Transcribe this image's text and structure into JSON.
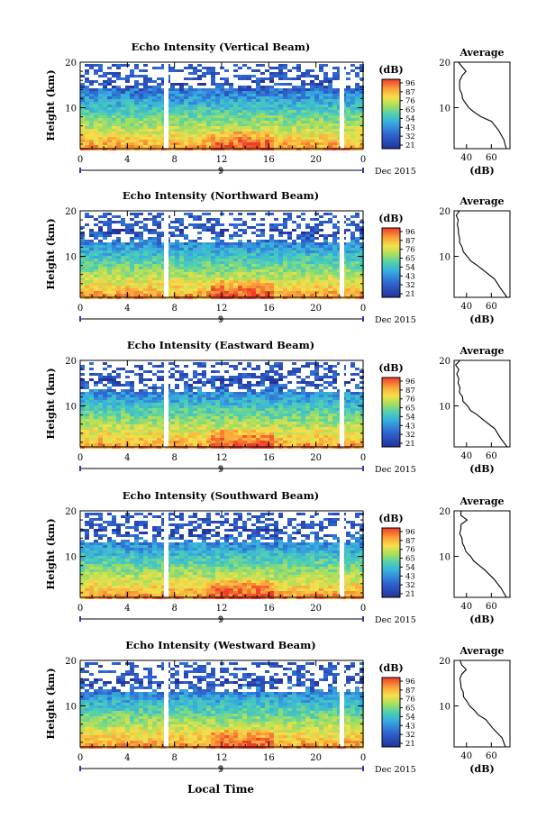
{
  "figure": {
    "xlabel": "Local Time",
    "date_label": "Dec 2015"
  },
  "colorbar": {
    "label": "(dB)",
    "tick_labels": [
      "96",
      "87",
      "76",
      "65",
      "54",
      "43",
      "32",
      "21"
    ],
    "colors": [
      "#f0342a",
      "#fa7a24",
      "#fcd23a",
      "#b8e05a",
      "#36c9a8",
      "#39b7e0",
      "#2f7bd3",
      "#2a3cb4"
    ]
  },
  "profile": {
    "title": "Average",
    "xlabel": "(dB)",
    "xticks": [
      "40",
      "60"
    ]
  },
  "chart_data": [
    {
      "type": "heatmap",
      "title": "Echo Intensity (Vertical Beam)",
      "ylabel": "Height (km)",
      "x": [
        0,
        4,
        8,
        12,
        16,
        20,
        24
      ],
      "x_tick_labels": [
        "0",
        "4",
        "8",
        "12",
        "16",
        "20",
        "0"
      ],
      "x_date_tick": "9",
      "yticks": [
        10,
        20
      ],
      "ylim": [
        1,
        20
      ],
      "xlim": [
        0,
        24
      ],
      "gaps_hours": [
        7.3,
        22.2
      ],
      "profile": {
        "type": "line",
        "ylim": [
          1,
          20
        ],
        "xlim": [
          30,
          75
        ],
        "height_km": [
          1,
          3,
          5,
          7,
          8,
          9,
          10,
          11,
          12,
          13,
          14,
          15,
          16,
          17,
          18,
          19,
          20
        ],
        "db": [
          72,
          70,
          66,
          60,
          52,
          46,
          42,
          39,
          37,
          36,
          35,
          34,
          35,
          36,
          40,
          36,
          34
        ]
      }
    },
    {
      "type": "heatmap",
      "title": "Echo Intensity (Northward Beam)",
      "ylabel": "Height (km)",
      "x": [
        0,
        4,
        8,
        12,
        16,
        20,
        24
      ],
      "x_tick_labels": [
        "0",
        "4",
        "8",
        "12",
        "16",
        "20",
        "0"
      ],
      "x_date_tick": "9",
      "yticks": [
        10,
        20
      ],
      "ylim": [
        1,
        20
      ],
      "xlim": [
        0,
        24
      ],
      "gaps_hours": [
        7.3,
        22.2
      ],
      "profile": {
        "type": "line",
        "ylim": [
          1,
          20
        ],
        "xlim": [
          30,
          75
        ],
        "height_km": [
          1,
          3,
          5,
          7,
          8,
          9,
          10,
          11,
          12,
          13,
          14,
          15,
          16,
          17,
          18,
          19,
          20
        ],
        "db": [
          72,
          68,
          62,
          54,
          48,
          44,
          40,
          38,
          36,
          35,
          34,
          34,
          33,
          33,
          33,
          32,
          34
        ]
      }
    },
    {
      "type": "heatmap",
      "title": "Echo Intensity (Eastward Beam)",
      "ylabel": "Height (km)",
      "x": [
        0,
        4,
        8,
        12,
        16,
        20,
        24
      ],
      "x_tick_labels": [
        "0",
        "4",
        "8",
        "12",
        "16",
        "20",
        "0"
      ],
      "x_date_tick": "9",
      "yticks": [
        10,
        20
      ],
      "ylim": [
        1,
        20
      ],
      "xlim": [
        0,
        24
      ],
      "gaps_hours": [
        7.3,
        22.2
      ],
      "profile": {
        "type": "line",
        "ylim": [
          1,
          20
        ],
        "xlim": [
          30,
          75
        ],
        "height_km": [
          1,
          3,
          5,
          7,
          8,
          9,
          10,
          11,
          12,
          13,
          14,
          15,
          16,
          17,
          18,
          19,
          20
        ],
        "db": [
          72,
          68,
          62,
          54,
          48,
          44,
          40,
          38,
          36,
          35,
          34,
          34,
          33,
          33,
          33,
          32,
          34
        ]
      }
    },
    {
      "type": "heatmap",
      "title": "Echo Intensity (Southward Beam)",
      "ylabel": "Height (km)",
      "x": [
        0,
        4,
        8,
        12,
        16,
        20,
        24
      ],
      "x_tick_labels": [
        "0",
        "4",
        "8",
        "12",
        "16",
        "20",
        "0"
      ],
      "x_date_tick": "9",
      "yticks": [
        10,
        20
      ],
      "ylim": [
        1,
        20
      ],
      "xlim": [
        0,
        24
      ],
      "gaps_hours": [
        7.3,
        22.2
      ],
      "profile": {
        "type": "line",
        "ylim": [
          1,
          20
        ],
        "xlim": [
          30,
          75
        ],
        "height_km": [
          1,
          3,
          5,
          7,
          8,
          9,
          10,
          11,
          12,
          13,
          14,
          15,
          16,
          17,
          18,
          19,
          20
        ],
        "db": [
          72,
          68,
          62,
          55,
          50,
          46,
          43,
          40,
          38,
          37,
          36,
          35,
          35,
          36,
          40,
          36,
          35
        ]
      }
    },
    {
      "type": "heatmap",
      "title": "Echo Intensity (Westward Beam)",
      "ylabel": "Height (km)",
      "x": [
        0,
        4,
        8,
        12,
        16,
        20,
        24
      ],
      "x_tick_labels": [
        "0",
        "4",
        "8",
        "12",
        "16",
        "20",
        "0"
      ],
      "x_date_tick": "9",
      "yticks": [
        10,
        20
      ],
      "ylim": [
        1,
        20
      ],
      "xlim": [
        0,
        24
      ],
      "gaps_hours": [
        7.3,
        22.2
      ],
      "profile": {
        "type": "line",
        "ylim": [
          1,
          20
        ],
        "xlim": [
          30,
          75
        ],
        "height_km": [
          1,
          3,
          5,
          7,
          8,
          9,
          10,
          11,
          12,
          13,
          14,
          15,
          16,
          17,
          18,
          19,
          20
        ],
        "db": [
          72,
          68,
          62,
          55,
          50,
          46,
          43,
          40,
          38,
          37,
          36,
          35,
          35,
          36,
          40,
          36,
          35
        ]
      }
    }
  ]
}
